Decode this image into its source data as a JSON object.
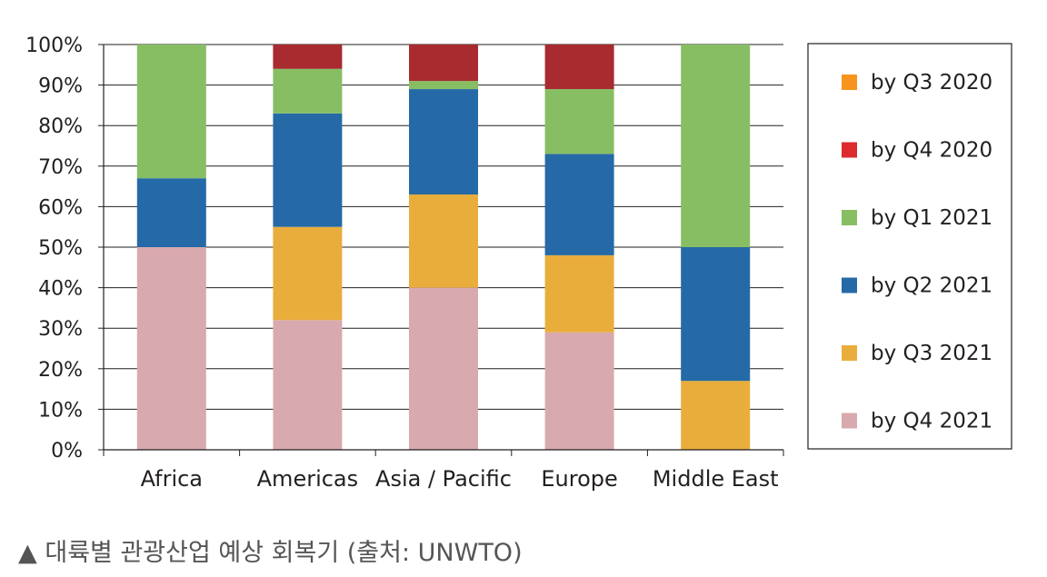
{
  "chart_data": {
    "type": "bar",
    "stacked": true,
    "categories": [
      "Africa",
      "Americas",
      "Asia / Pacific",
      "Europe",
      "Middle East"
    ],
    "series": [
      {
        "name": "by Q4 2021",
        "color": "#d8aaaf",
        "values": [
          50,
          32,
          40,
          29,
          0
        ]
      },
      {
        "name": "by Q3 2021",
        "color": "#e9ad3c",
        "values": [
          0,
          23,
          23,
          19,
          17
        ]
      },
      {
        "name": "by Q2 2021",
        "color": "#256aa6",
        "values": [
          17,
          28,
          26,
          25,
          33
        ]
      },
      {
        "name": "by Q1 2021",
        "color": "#87be63",
        "values": [
          33,
          11,
          2,
          16,
          50
        ]
      },
      {
        "name": "by Q4 2020",
        "color": "#a72b2f",
        "values": [
          0,
          6,
          9,
          11,
          0
        ]
      },
      {
        "name": "by Q3 2020",
        "color": "#f2962a",
        "values": [
          0,
          0,
          0,
          0,
          0
        ]
      }
    ],
    "legend_order": [
      {
        "name": "by Q3 2020",
        "color": "#f7941d"
      },
      {
        "name": "by Q4 2020",
        "color": "#dc2a2e"
      },
      {
        "name": "by Q1 2021",
        "color": "#87be63"
      },
      {
        "name": "by Q2 2021",
        "color": "#256aa6"
      },
      {
        "name": "by Q3 2021",
        "color": "#e9ad3c"
      },
      {
        "name": "by Q4 2021",
        "color": "#d8aaaf"
      }
    ],
    "yticks": [
      "0%",
      "10%",
      "20%",
      "30%",
      "40%",
      "50%",
      "60%",
      "70%",
      "80%",
      "90%",
      "100%"
    ],
    "ylim": [
      0,
      100
    ],
    "grid": true,
    "legend_position": "right"
  },
  "caption": {
    "marker": "▲",
    "text": "대륙별 관광산업 예상 회복기 (출처: UNWTO)"
  }
}
